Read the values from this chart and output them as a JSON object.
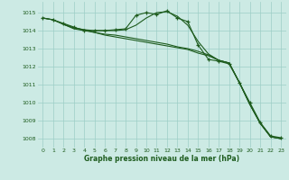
{
  "background_color": "#cceae4",
  "plot_bg_color": "#cceae4",
  "line_color": "#1e5c1e",
  "grid_color": "#9ecec6",
  "xlabel": "Graphe pression niveau de la mer (hPa)",
  "xlabel_color": "#1e5c1e",
  "tick_color": "#1e5c1e",
  "ylim": [
    1007.5,
    1015.6
  ],
  "xlim": [
    -0.5,
    23.5
  ],
  "yticks": [
    1008,
    1009,
    1010,
    1011,
    1012,
    1013,
    1014,
    1015
  ],
  "xticks": [
    0,
    1,
    2,
    3,
    4,
    5,
    6,
    7,
    8,
    9,
    10,
    11,
    12,
    13,
    14,
    15,
    16,
    17,
    18,
    19,
    20,
    21,
    22,
    23
  ],
  "series": [
    {
      "x": [
        0,
        1,
        2,
        3,
        4,
        5,
        6,
        7,
        8,
        9,
        10,
        11,
        12,
        13,
        14,
        15,
        16,
        17,
        18,
        19,
        20,
        21,
        22,
        23
      ],
      "y": [
        1014.7,
        1014.6,
        1014.4,
        1014.2,
        1014.0,
        1014.0,
        1014.0,
        1014.05,
        1014.1,
        1014.85,
        1015.0,
        1014.9,
        1015.1,
        1014.7,
        1014.5,
        1013.2,
        1012.4,
        1012.3,
        1012.15,
        1011.1,
        1010.0,
        1008.9,
        1008.15,
        1008.05
      ],
      "marker": true
    },
    {
      "x": [
        0,
        1,
        2,
        3,
        4,
        5,
        6,
        7,
        8,
        9,
        10,
        11,
        12,
        13,
        14,
        15,
        16,
        17,
        18,
        19,
        20,
        21,
        22,
        23
      ],
      "y": [
        1014.7,
        1014.6,
        1014.35,
        1014.15,
        1014.05,
        1014.0,
        1014.0,
        1014.0,
        1014.05,
        1014.3,
        1014.7,
        1015.0,
        1015.05,
        1014.8,
        1014.3,
        1013.4,
        1012.7,
        1012.35,
        1012.2,
        1011.1,
        1009.9,
        1008.85,
        1008.1,
        1008.0
      ],
      "marker": false
    },
    {
      "x": [
        0,
        1,
        2,
        3,
        4,
        5,
        6,
        7,
        8,
        9,
        10,
        11,
        12,
        13,
        14,
        15,
        16,
        17,
        18,
        19,
        20,
        21,
        22,
        23
      ],
      "y": [
        1014.7,
        1014.6,
        1014.35,
        1014.1,
        1014.0,
        1013.9,
        1013.8,
        1013.75,
        1013.65,
        1013.55,
        1013.45,
        1013.35,
        1013.25,
        1013.1,
        1013.0,
        1012.85,
        1012.65,
        1012.35,
        1012.2,
        1011.1,
        1009.9,
        1008.85,
        1008.1,
        1008.0
      ],
      "marker": false
    },
    {
      "x": [
        2,
        3,
        4,
        5,
        6,
        7,
        8,
        9,
        10,
        11,
        12,
        13,
        14,
        15,
        16,
        17,
        18,
        19,
        20,
        21,
        22,
        23
      ],
      "y": [
        1014.35,
        1014.15,
        1014.05,
        1013.9,
        1013.75,
        1013.65,
        1013.55,
        1013.45,
        1013.35,
        1013.25,
        1013.15,
        1013.05,
        1012.95,
        1012.75,
        1012.6,
        1012.35,
        1012.2,
        1011.1,
        1009.9,
        1008.85,
        1008.1,
        1008.0
      ],
      "marker": false
    }
  ]
}
